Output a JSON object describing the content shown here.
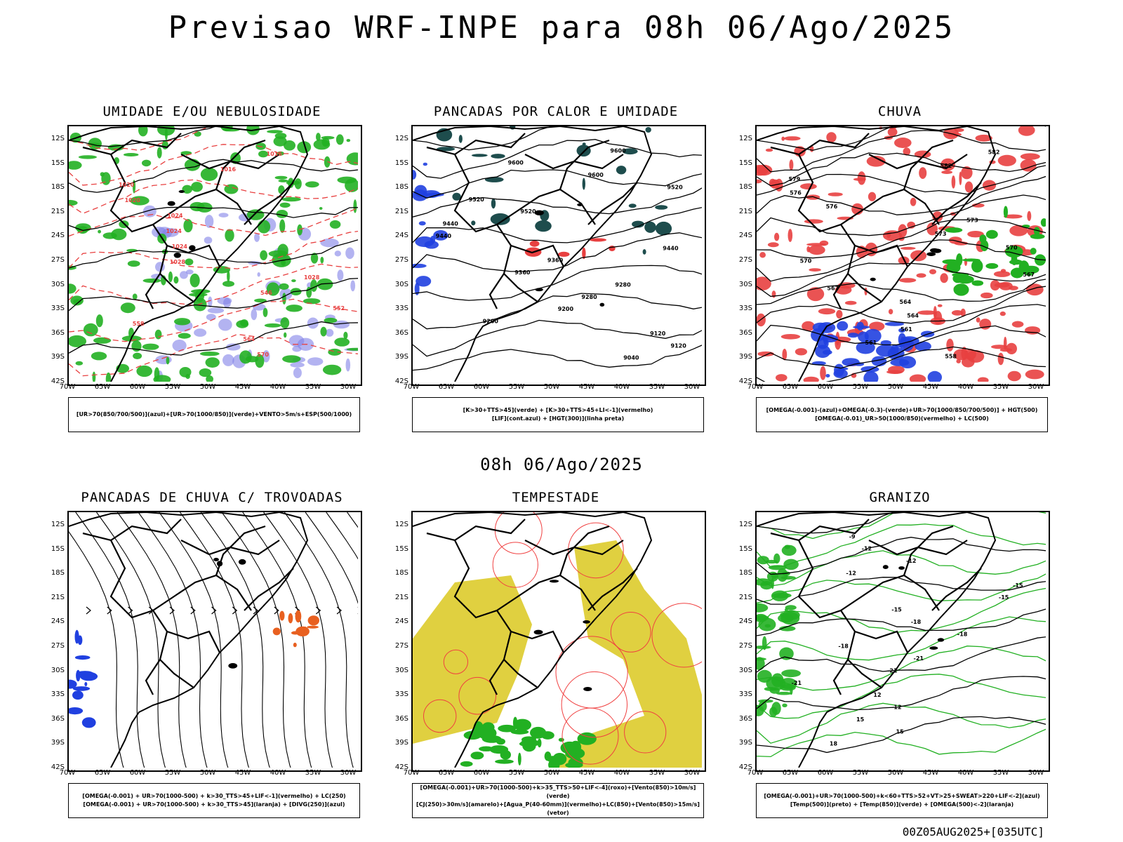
{
  "header": {
    "title": "Previsao WRF-INPE  para 08h 06/Ago/2025",
    "mid_title": "08h 06/Ago/2025",
    "run_tag": "00Z05AUG2025+[035UTC]"
  },
  "axes": {
    "latitudes": [
      "12S",
      "15S",
      "18S",
      "21S",
      "24S",
      "27S",
      "30S",
      "33S",
      "36S",
      "39S",
      "42S"
    ],
    "longitudes": [
      "70W",
      "65W",
      "60W",
      "55W",
      "50W",
      "45W",
      "40W",
      "35W",
      "30W"
    ]
  },
  "panels": [
    {
      "id": "umidade",
      "title": "UMIDADE E/OU NEBULOSIDADE",
      "legend": [
        "[UR>70(850/700/500)](azul)+[UR>70(1000/850)](verde)+VENTO>5m/s+ESP(500/1000)"
      ],
      "contour_labels": [
        "1016",
        "1016",
        "1020",
        "1020",
        "1024",
        "1024",
        "1024",
        "1028",
        "1028",
        "546",
        "552",
        "558",
        "564",
        "570"
      ],
      "colors": {
        "primary": "#8080e8",
        "secondary": "#22b022",
        "tertiary": "#e84040"
      }
    },
    {
      "id": "pancadas-calor",
      "title": "PANCADAS POR CALOR E UMIDADE",
      "legend": [
        "[K>30+TTS>45](verde) + [K>30+TTS>45+LI<-1](vermelho)",
        "[LIF](cont.azul) + [HGT(300)](linha preta)"
      ],
      "contour_labels": [
        "9600",
        "9600",
        "9600",
        "9520",
        "9520",
        "9520",
        "9440",
        "9440",
        "9440",
        "9360",
        "9360",
        "9280",
        "9280",
        "9200",
        "9200",
        "9120",
        "9120",
        "9040"
      ],
      "colors": {
        "primary": "#1e4d4d",
        "secondary": "#2040e0",
        "tertiary": "#e84040"
      }
    },
    {
      "id": "chuva",
      "title": "CHUVA",
      "legend": [
        "[OMEGA(-0.001)-(azul)+OMEGA(-0.3)-(verde)+UR>70(1000/850/700/500)] + HGT(500)",
        "[OMEGA(-0.01)_UR>50(1000/850)(vermelho) + LC(500)"
      ],
      "contour_labels": [
        "582",
        "582",
        "579",
        "576",
        "576",
        "573",
        "573",
        "570",
        "570",
        "567",
        "567",
        "564",
        "564",
        "561",
        "561",
        "558"
      ],
      "colors": {
        "primary": "#e84040",
        "secondary": "#2040e0",
        "tertiary": "#22b022"
      }
    },
    {
      "id": "pancadas-trovoadas",
      "title": "PANCADAS DE CHUVA C/ TROVOADAS",
      "legend": [
        "[OMEGA(-0.001) + UR>70(1000-500) + k>30_TTS>45+LIF<-1](vermelho) + LC(250)",
        "[OMEGA(-0.001) + UR>70(1000-500) + k>30_TTS>45](laranja) + [DIVG(250)](azul)"
      ],
      "contour_labels": [],
      "colors": {
        "primary": "#2040e0",
        "secondary": "#e86020",
        "tertiary": "#e84040"
      }
    },
    {
      "id": "tempestade",
      "title": "TEMPESTADE",
      "legend": [
        "[OMEGA(-0.001)+UR>70(1000-500)+k>35_TTS>50+LIF<-4](roxo)+[Vento(850)>10m/s](verde)",
        "[CJ(250)>30m/s](amarelo)+[Agua_P(40-60mm)](vermelho)+LC(850)+[Vento(850)>15m/s](vetor)"
      ],
      "contour_labels": [],
      "colors": {
        "primary": "#e0d040",
        "secondary": "#22b022",
        "tertiary": "#f04040"
      }
    },
    {
      "id": "granizo",
      "title": "GRANIZO",
      "legend": [
        "[OMEGA(-0.001)+UR>70(1000-500)+k<60+TTS>52+VT>25+SWEAT>220+LIF<-2](azul)",
        "[Temp(500)](preto) + [Temp(850)](verde) + [OMEGA(500)<-2](laranja)"
      ],
      "contour_labels": [
        "-9",
        "-12",
        "-12",
        "-12",
        "-15",
        "-15",
        "-15",
        "-18",
        "-18",
        "-18",
        "-21",
        "-21",
        "-21",
        "12",
        "12",
        "15",
        "15",
        "18"
      ],
      "colors": {
        "primary": "#22b022",
        "secondary": "#000000",
        "tertiary": "#e86020"
      }
    }
  ]
}
